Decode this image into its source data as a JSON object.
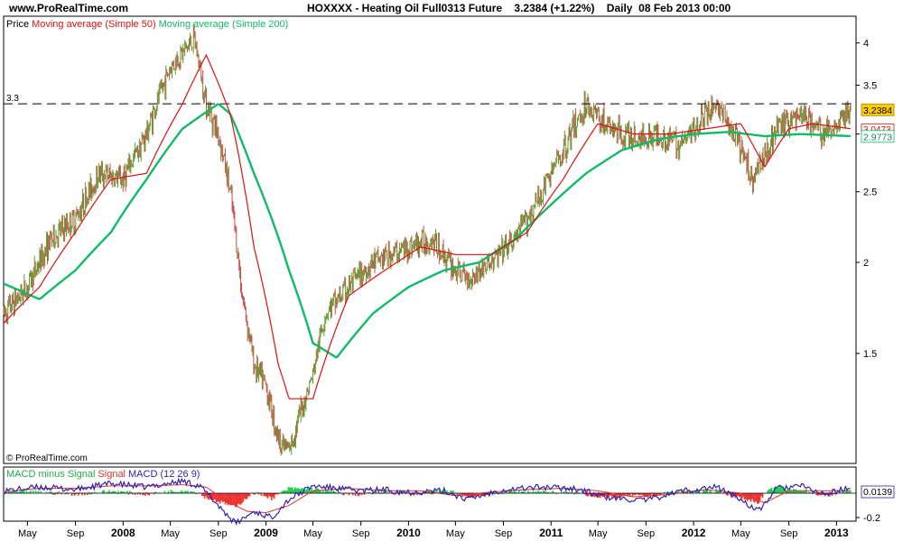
{
  "header": {
    "site_url": "www.ProRealTime.com",
    "instrument": "HOXXXX - Heating Oil Full0313 Future",
    "last_price": "3.2384 (+1.22%)",
    "period": "Daily",
    "date": "08 Feb 2013 00:00"
  },
  "price_panel": {
    "legend": {
      "price": "Price",
      "ma50": "Moving average (Simple 50)",
      "ma200": "Moving average (Simple 200)"
    },
    "watermark": "© ProRealTime.com",
    "hline_label": "3.3",
    "badges": {
      "last": "3.2384",
      "ma50": "3.0473",
      "ma200": "2.9773"
    },
    "y_ticks": [
      "4",
      "3.5",
      "3",
      "2.5",
      "2",
      "1.5"
    ]
  },
  "macd_panel": {
    "legend": {
      "hist": "MACD minus Signal",
      "signal": "Signal",
      "macd": "MACD (12 26 9)"
    },
    "badge": "0.0139",
    "y_ticks": [
      "-0.2"
    ]
  },
  "x_axis": {
    "ticks": [
      "May",
      "Sep",
      "2008",
      "May",
      "Sep",
      "2009",
      "May",
      "Sep",
      "2010",
      "May",
      "Sep",
      "2011",
      "May",
      "Sep",
      "2012",
      "May",
      "Sep",
      "2013"
    ]
  },
  "colors": {
    "up_bar": "#5aa02c",
    "down_bar": "#c8504a",
    "ma50": "#dd1111",
    "ma200": "#11bb66",
    "macd": "#3322aa",
    "signal": "#dd3333",
    "hist_pos": "#22cc55",
    "hist_neg": "#ee3333",
    "last_badge": "#ffcc00"
  },
  "chart_data": [
    {
      "type": "line",
      "title": "HOXXXX - Heating Oil Full0313 Future",
      "x_unit": "date",
      "y_scale": "log",
      "ylim": [
        1.0,
        4.3
      ],
      "horizontal_line": 3.3,
      "series": [
        {
          "name": "Price",
          "x": [
            "2007-03-01",
            "2007-05-01",
            "2007-07-01",
            "2007-09-01",
            "2007-11-01",
            "2008-01-01",
            "2008-03-01",
            "2008-05-01",
            "2008-07-01",
            "2008-08-01",
            "2008-09-01",
            "2008-10-01",
            "2008-11-01",
            "2008-12-01",
            "2009-01-01",
            "2009-02-01",
            "2009-03-01",
            "2009-05-01",
            "2009-06-01",
            "2009-08-01",
            "2009-10-01",
            "2010-01-01",
            "2010-03-01",
            "2010-05-01",
            "2010-06-01",
            "2010-08-01",
            "2010-10-01",
            "2010-12-01",
            "2011-02-01",
            "2011-04-01",
            "2011-06-01",
            "2011-08-01",
            "2011-10-01",
            "2011-12-01",
            "2012-02-01",
            "2012-03-01",
            "2012-05-01",
            "2012-06-01",
            "2012-08-01",
            "2012-10-01",
            "2012-12-01",
            "2013-02-08"
          ],
          "y": [
            1.7,
            1.85,
            2.15,
            2.3,
            2.65,
            2.6,
            3.0,
            3.7,
            4.05,
            3.3,
            3.0,
            2.5,
            1.8,
            1.45,
            1.35,
            1.15,
            1.1,
            1.4,
            1.7,
            1.85,
            2.0,
            2.1,
            2.15,
            1.95,
            1.9,
            2.0,
            2.15,
            2.45,
            2.85,
            3.3,
            3.05,
            2.95,
            3.0,
            2.9,
            3.2,
            3.3,
            2.85,
            2.6,
            3.05,
            3.2,
            3.0,
            3.24
          ]
        },
        {
          "name": "Moving average (Simple 50)",
          "x": [
            "2007-03-01",
            "2007-06-01",
            "2007-09-01",
            "2007-12-01",
            "2008-03-01",
            "2008-06-01",
            "2008-08-01",
            "2008-10-01",
            "2008-12-01",
            "2009-02-01",
            "2009-03-01",
            "2009-05-01",
            "2009-08-01",
            "2009-11-01",
            "2010-02-01",
            "2010-05-01",
            "2010-08-01",
            "2010-11-01",
            "2011-02-01",
            "2011-05-01",
            "2011-08-01",
            "2011-11-01",
            "2012-02-01",
            "2012-05-01",
            "2012-07-01",
            "2012-09-01",
            "2012-11-01",
            "2013-02-08"
          ],
          "y": [
            1.65,
            1.85,
            2.2,
            2.6,
            2.65,
            3.3,
            3.85,
            3.2,
            2.1,
            1.45,
            1.3,
            1.3,
            1.8,
            1.95,
            2.1,
            2.05,
            2.05,
            2.2,
            2.6,
            3.1,
            3.0,
            3.0,
            3.05,
            3.1,
            2.7,
            3.05,
            3.1,
            3.05
          ]
        },
        {
          "name": "Moving average (Simple 200)",
          "x": [
            "2007-03-01",
            "2007-06-01",
            "2007-09-01",
            "2007-12-01",
            "2008-03-01",
            "2008-06-01",
            "2008-09-01",
            "2008-10-01",
            "2008-12-01",
            "2009-03-01",
            "2009-05-01",
            "2009-07-01",
            "2009-10-01",
            "2010-01-01",
            "2010-04-01",
            "2010-07-01",
            "2010-10-01",
            "2011-01-01",
            "2011-04-01",
            "2011-07-01",
            "2011-10-01",
            "2012-01-01",
            "2012-04-01",
            "2012-07-01",
            "2012-10-01",
            "2013-02-08"
          ],
          "y": [
            1.87,
            1.78,
            1.95,
            2.2,
            2.6,
            3.05,
            3.3,
            3.2,
            2.65,
            1.95,
            1.55,
            1.48,
            1.7,
            1.85,
            1.95,
            2.0,
            2.15,
            2.4,
            2.65,
            2.85,
            2.95,
            3.0,
            3.02,
            2.98,
            3.0,
            2.98
          ]
        }
      ]
    },
    {
      "type": "line",
      "title": "MACD (12 26 9)",
      "x_unit": "date",
      "ylim": [
        -0.3,
        0.2
      ],
      "series": [
        {
          "name": "MACD (12 26 9)",
          "x": [
            "2007-03-01",
            "2007-06-01",
            "2007-09-01",
            "2007-12-01",
            "2008-03-01",
            "2008-06-01",
            "2008-07-15",
            "2008-09-01",
            "2008-10-15",
            "2008-12-01",
            "2009-01-15",
            "2009-03-01",
            "2009-05-01",
            "2009-07-01",
            "2009-09-01",
            "2009-11-01",
            "2010-01-01",
            "2010-04-01",
            "2010-06-01",
            "2010-09-01",
            "2010-12-01",
            "2011-03-01",
            "2011-06-01",
            "2011-09-01",
            "2011-12-01",
            "2012-03-01",
            "2012-05-01",
            "2012-06-15",
            "2012-08-01",
            "2012-10-01",
            "2012-12-01",
            "2013-02-08"
          ],
          "y": [
            0.02,
            0.05,
            0.03,
            0.08,
            0.05,
            0.1,
            0.06,
            -0.1,
            -0.25,
            -0.15,
            -0.2,
            -0.05,
            0.06,
            0.04,
            0.02,
            0.03,
            0.01,
            0.02,
            -0.05,
            0.03,
            0.05,
            0.04,
            -0.04,
            -0.06,
            0.02,
            0.05,
            -0.05,
            -0.15,
            0.04,
            0.06,
            -0.01,
            0.05
          ]
        },
        {
          "name": "Signal",
          "x": [
            "2007-03-01",
            "2007-06-01",
            "2007-09-01",
            "2007-12-01",
            "2008-03-01",
            "2008-06-01",
            "2008-08-01",
            "2008-10-01",
            "2008-11-15",
            "2009-01-01",
            "2009-03-01",
            "2009-05-01",
            "2009-08-01",
            "2009-11-01",
            "2010-02-01",
            "2010-05-01",
            "2010-08-01",
            "2010-11-01",
            "2011-02-01",
            "2011-05-01",
            "2011-08-01",
            "2011-11-01",
            "2012-02-01",
            "2012-05-01",
            "2012-07-01",
            "2012-09-01",
            "2012-11-01",
            "2013-02-08"
          ],
          "y": [
            0.01,
            0.04,
            0.04,
            0.06,
            0.06,
            0.07,
            0.05,
            -0.08,
            -0.15,
            -0.16,
            -0.1,
            0.02,
            0.04,
            0.02,
            0.02,
            -0.02,
            0.01,
            0.03,
            0.04,
            0.02,
            -0.03,
            -0.01,
            0.03,
            0.0,
            -0.08,
            0.02,
            0.02,
            0.02
          ]
        }
      ]
    }
  ]
}
